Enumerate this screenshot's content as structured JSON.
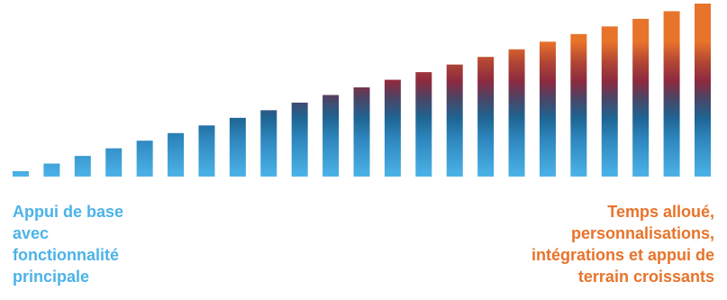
{
  "chart_data": {
    "type": "bar",
    "values": [
      1,
      2,
      3,
      4,
      5,
      6,
      7,
      8,
      9,
      10,
      11,
      12,
      13,
      14,
      15,
      16,
      17,
      18,
      19,
      20,
      21,
      22,
      23
    ],
    "xlabel": "",
    "ylabel": "",
    "grid": false,
    "legend": "none"
  },
  "colors": {
    "blue": "#4cb3e8",
    "mid_blue": "#1e6492",
    "dark_red": "#8c2a40",
    "orange": "#e8732a",
    "left_text": "#4cb3e8",
    "right_text": "#e8732a"
  },
  "captions": {
    "left": {
      "lines": [
        "Appui de base",
        "avec",
        "fonctionnalité",
        "principale"
      ]
    },
    "right": {
      "lines": [
        "Temps alloué,",
        "personnalisations,",
        "intégrations et appui de",
        "terrain croissants"
      ]
    }
  }
}
